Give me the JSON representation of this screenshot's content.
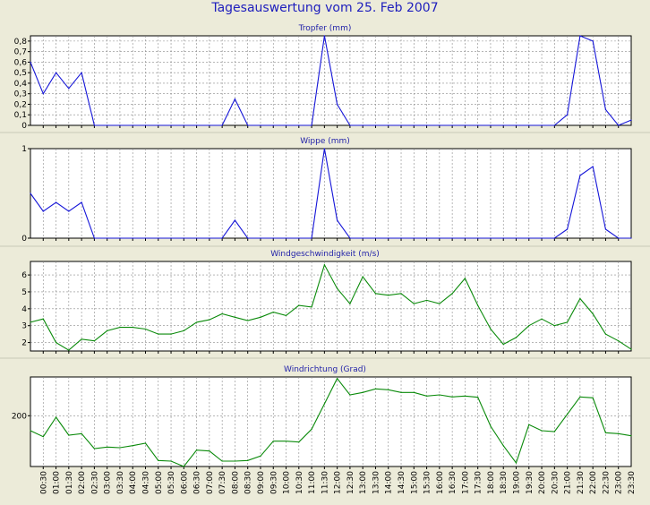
{
  "title": "Tagesauswertung vom 25. Feb 2007",
  "colors": {
    "background": "#ecebd9",
    "plot_bg": "#ffffff",
    "blue_series": "#1515d8",
    "green_series": "#0a8a0a",
    "title": "#1d1dbd"
  },
  "chart_data": [
    {
      "type": "line",
      "title": "Tropfer (mm)",
      "color": "#1515d8",
      "y_ticks": [
        "0",
        "0,1",
        "0,2",
        "0,3",
        "0,4",
        "0,5",
        "0,6",
        "0,7",
        "0,8"
      ],
      "ylim": [
        0,
        0.85
      ],
      "x": [
        0,
        0.5,
        1,
        1.5,
        2,
        2.5,
        3,
        3.5,
        4,
        4.5,
        5,
        5.5,
        6,
        6.5,
        7,
        7.5,
        8,
        8.5,
        9,
        9.5,
        10,
        10.5,
        11,
        11.5,
        12,
        12.5,
        13,
        13.5,
        14,
        14.5,
        15,
        15.5,
        16,
        16.5,
        17,
        17.5,
        18,
        18.5,
        19,
        19.5,
        20,
        20.5,
        21,
        21.5,
        22,
        22.5,
        23,
        23.5
      ],
      "values": [
        0.6,
        0.3,
        0.5,
        0.35,
        0.5,
        0,
        0,
        0,
        0,
        0,
        0,
        0,
        0,
        0,
        0,
        0,
        0.25,
        0,
        0,
        0,
        0,
        0,
        0,
        0.85,
        0.2,
        0,
        0,
        0,
        0,
        0,
        0,
        0,
        0,
        0,
        0,
        0,
        0,
        0,
        0,
        0,
        0,
        0,
        0.1,
        0.85,
        0.8,
        0.15,
        0,
        0.05
      ],
      "grid": true
    },
    {
      "type": "line",
      "title": "Wippe (mm)",
      "color": "#1515d8",
      "y_ticks": [
        "0",
        "1"
      ],
      "ylim": [
        0,
        1
      ],
      "x": [
        0,
        0.5,
        1,
        1.5,
        2,
        2.5,
        3,
        3.5,
        4,
        4.5,
        5,
        5.5,
        6,
        6.5,
        7,
        7.5,
        8,
        8.5,
        9,
        9.5,
        10,
        10.5,
        11,
        11.5,
        12,
        12.5,
        13,
        13.5,
        14,
        14.5,
        15,
        15.5,
        16,
        16.5,
        17,
        17.5,
        18,
        18.5,
        19,
        19.5,
        20,
        20.5,
        21,
        21.5,
        22,
        22.5,
        23,
        23.5
      ],
      "values": [
        0.5,
        0.3,
        0.4,
        0.3,
        0.4,
        0,
        0,
        0,
        0,
        0,
        0,
        0,
        0,
        0,
        0,
        0,
        0.2,
        0,
        0,
        0,
        0,
        0,
        0,
        1.0,
        0.2,
        0,
        0,
        0,
        0,
        0,
        0,
        0,
        0,
        0,
        0,
        0,
        0,
        0,
        0,
        0,
        0,
        0,
        0.1,
        0.7,
        0.8,
        0.1,
        0,
        0
      ],
      "grid": true
    },
    {
      "type": "line",
      "title": "Windgeschwindigkeit (m/s)",
      "color": "#0a8a0a",
      "y_ticks": [
        "2",
        "3",
        "4",
        "5",
        "6"
      ],
      "ylim": [
        1.5,
        6.8
      ],
      "x": [
        0,
        0.5,
        1,
        1.5,
        2,
        2.5,
        3,
        3.5,
        4,
        4.5,
        5,
        5.5,
        6,
        6.5,
        7,
        7.5,
        8,
        8.5,
        9,
        9.5,
        10,
        10.5,
        11,
        11.5,
        12,
        12.5,
        13,
        13.5,
        14,
        14.5,
        15,
        15.5,
        16,
        16.5,
        17,
        17.5,
        18,
        18.5,
        19,
        19.5,
        20,
        20.5,
        21,
        21.5,
        22,
        22.5,
        23,
        23.5
      ],
      "values": [
        3.2,
        3.4,
        2.0,
        1.55,
        2.2,
        2.1,
        2.7,
        2.9,
        2.9,
        2.8,
        2.5,
        2.5,
        2.7,
        3.2,
        3.35,
        3.7,
        3.5,
        3.3,
        3.5,
        3.8,
        3.6,
        4.2,
        4.1,
        6.6,
        5.2,
        4.3,
        5.9,
        4.9,
        4.8,
        4.9,
        4.3,
        4.5,
        4.3,
        4.9,
        5.8,
        4.2,
        2.8,
        1.9,
        2.3,
        3.0,
        3.4,
        3.0,
        3.2,
        4.6,
        3.7,
        2.5,
        2.1,
        1.6
      ],
      "grid": true
    },
    {
      "type": "line",
      "title": "Windrichtung (Grad)",
      "color": "#0a8a0a",
      "y_ticks": [
        "200"
      ],
      "ylim": [
        30,
        330
      ],
      "x": [
        0,
        0.5,
        1,
        1.5,
        2,
        2.5,
        3,
        3.5,
        4,
        4.5,
        5,
        5.5,
        6,
        6.5,
        7,
        7.5,
        8,
        8.5,
        9,
        9.5,
        10,
        10.5,
        11,
        11.5,
        12,
        12.5,
        13,
        13.5,
        14,
        14.5,
        15,
        15.5,
        16,
        16.5,
        17,
        17.5,
        18,
        18.5,
        19,
        19.5,
        20,
        20.5,
        21,
        21.5,
        22,
        22.5,
        23,
        23.5
      ],
      "values": [
        150,
        130,
        195,
        135,
        140,
        90,
        95,
        93,
        100,
        108,
        50,
        48,
        30,
        85,
        82,
        48,
        48,
        50,
        65,
        115,
        115,
        112,
        155,
        240,
        325,
        270,
        278,
        290,
        287,
        278,
        278,
        266,
        270,
        263,
        266,
        262,
        165,
        100,
        42,
        170,
        150,
        147,
        205,
        263,
        260,
        143,
        140,
        133
      ],
      "grid": true
    }
  ],
  "x_tick_labels": [
    "00:30",
    "01:00",
    "01:30",
    "02:00",
    "02:30",
    "03:00",
    "03:30",
    "04:00",
    "04:30",
    "05:00",
    "05:30",
    "06:00",
    "06:30",
    "07:00",
    "07:30",
    "08:00",
    "08:30",
    "09:00",
    "09:30",
    "10:00",
    "10:30",
    "11:00",
    "11:30",
    "12:00",
    "12:30",
    "13:00",
    "13:30",
    "14:00",
    "14:30",
    "15:00",
    "15:30",
    "16:00",
    "16:30",
    "17:00",
    "17:30",
    "18:00",
    "18:30",
    "19:00",
    "19:30",
    "20:00",
    "20:30",
    "21:00",
    "21:30",
    "22:00",
    "22:30",
    "23:00",
    "23:30"
  ]
}
